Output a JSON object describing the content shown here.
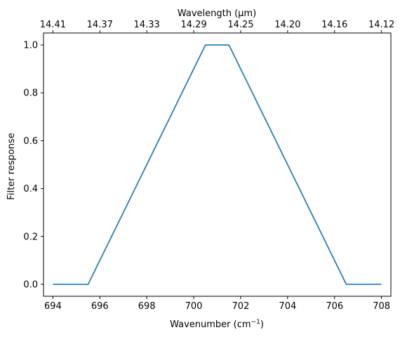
{
  "chart_data": {
    "type": "line",
    "xlabel": "Wavenumber (cm",
    "xlabel_sup": "−1",
    "xlabel_close": ")",
    "ylabel": "Filter response",
    "top_xlabel": "Wavelength (μm)",
    "xlim": [
      693.6,
      708.4
    ],
    "ylim": [
      -0.05,
      1.05
    ],
    "x_ticks": [
      694,
      696,
      698,
      700,
      702,
      704,
      706,
      708
    ],
    "x_tick_labels": [
      "694",
      "696",
      "698",
      "700",
      "702",
      "704",
      "706",
      "708"
    ],
    "y_ticks": [
      0.0,
      0.2,
      0.4,
      0.6,
      0.8,
      1.0
    ],
    "y_tick_labels": [
      "0.0",
      "0.2",
      "0.4",
      "0.6",
      "0.8",
      "1.0"
    ],
    "top_ticks": [
      694,
      696,
      698,
      700,
      702,
      704,
      706,
      708
    ],
    "top_tick_labels": [
      "14.41",
      "14.37",
      "14.33",
      "14.29",
      "14.25",
      "14.20",
      "14.16",
      "14.12"
    ],
    "grid": false,
    "series": [
      {
        "color": "#1f77b4",
        "x": [
          694.0,
          695.5,
          700.5,
          701.5,
          706.5,
          708.0
        ],
        "y": [
          0.0,
          0.0,
          1.0,
          1.0,
          0.0,
          0.0
        ]
      }
    ]
  }
}
